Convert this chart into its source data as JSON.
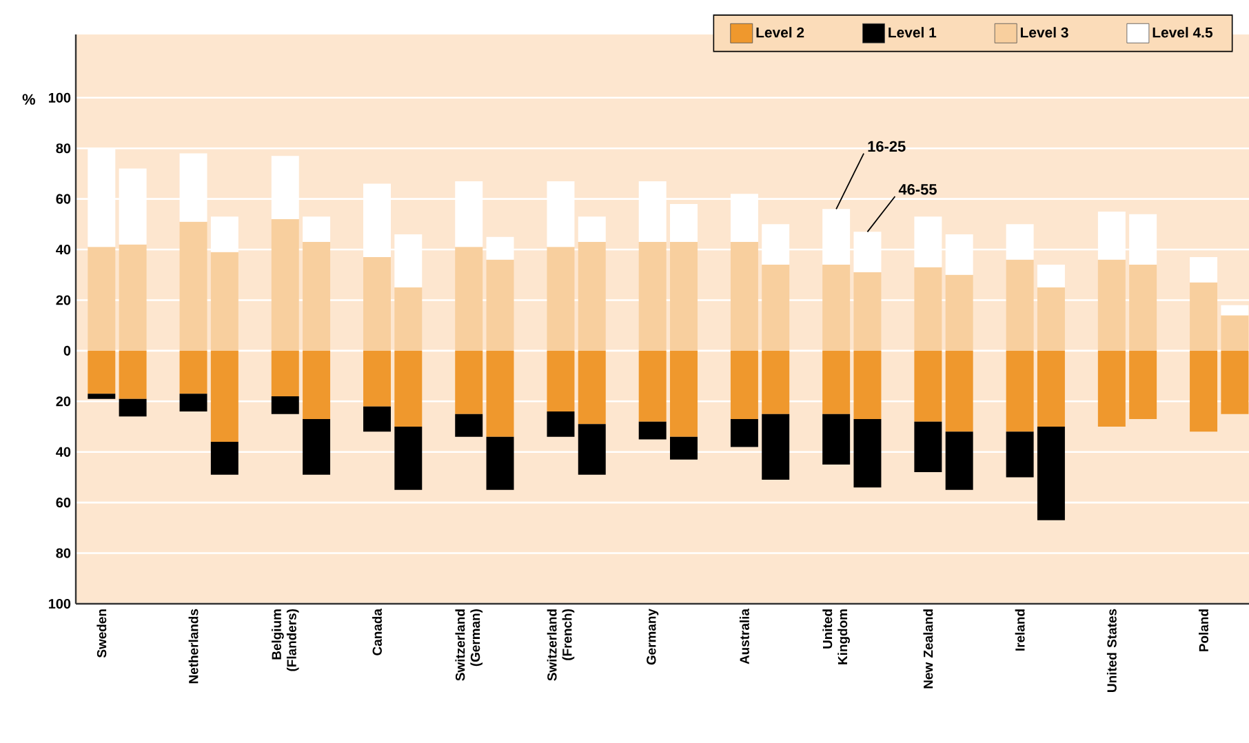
{
  "chart_data": {
    "type": "bar",
    "stacked": true,
    "categories": [
      "Sweden",
      null,
      "Netherlands",
      null,
      "Belgium (Flanders)",
      null,
      "Canada",
      null,
      "Switzerland (German)",
      null,
      "Switzerland (French)",
      null,
      "Germany",
      null,
      "Australia",
      null,
      "United Kingdom",
      null,
      "New Zealand",
      null,
      "Ireland",
      null,
      "United States",
      null,
      "Poland",
      null
    ],
    "ylabel": "%",
    "ylim": [
      -100,
      125
    ],
    "yticks": [
      {
        "value": -100,
        "label": "100"
      },
      {
        "value": -80,
        "label": "80"
      },
      {
        "value": -60,
        "label": "60"
      },
      {
        "value": -40,
        "label": "40"
      },
      {
        "value": -20,
        "label": "20"
      },
      0,
      20,
      40,
      60,
      80,
      100
    ],
    "grid": "y",
    "legend": "top",
    "annotations": [
      {
        "text": "16-25",
        "x": "United Kingdom",
        "y": 56
      },
      {
        "text": "46-55",
        "y": 47
      }
    ],
    "series": [
      {
        "name": "Level 2",
        "color": "#ef982d",
        "values": [
          -17,
          -19,
          -17,
          -36,
          -18,
          -27,
          -22,
          -30,
          -25,
          -34,
          -24,
          -29,
          -28,
          -34,
          -27,
          -25,
          -25,
          -27,
          -28,
          -32,
          -32,
          -30,
          -30,
          -27,
          -32,
          -25
        ]
      },
      {
        "name": "Level 1",
        "color": "#000000",
        "values": [
          -2,
          -7,
          -7,
          -13,
          -7,
          -22,
          -10,
          -25,
          -9,
          -21,
          -10,
          -20,
          -7,
          -9,
          -11,
          -26,
          -20,
          -27,
          -20,
          -23,
          -18,
          -37,
          null,
          null,
          null,
          null
        ]
      },
      {
        "name": "Level 3",
        "color": "#f8cf9e",
        "values": [
          41,
          42,
          51,
          39,
          52,
          43,
          37,
          25,
          41,
          36,
          41,
          43,
          43,
          43,
          43,
          34,
          34,
          31,
          33,
          30,
          36,
          25,
          36,
          34,
          27,
          14
        ]
      },
      {
        "name": "Level 4.5",
        "color": "#ffffff",
        "values": [
          39,
          30,
          27,
          14,
          25,
          10,
          29,
          21,
          26,
          9,
          26,
          10,
          24,
          15,
          19,
          16,
          22,
          16,
          20,
          16,
          14,
          9,
          19,
          20,
          10,
          4
        ]
      }
    ]
  }
}
